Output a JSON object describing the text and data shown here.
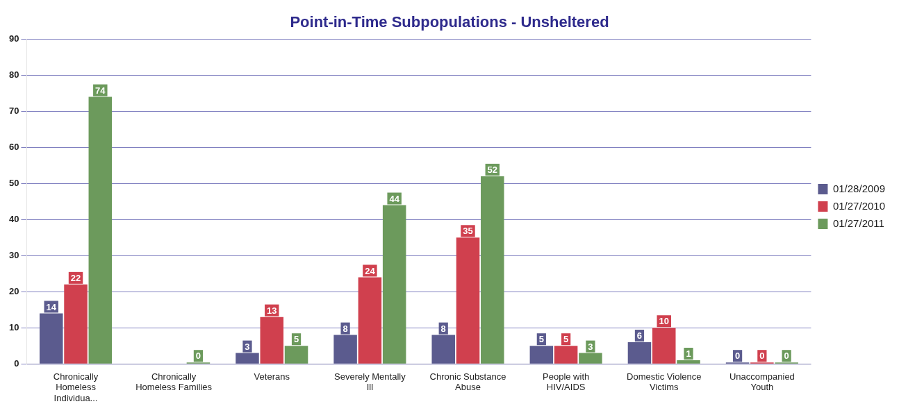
{
  "chart_data": {
    "type": "bar",
    "title": "Point-in-Time Subpopulations - Unsheltered",
    "categories": [
      "Chronically Homeless Individua...",
      "Chronically Homeless Families",
      "Veterans",
      "Severely Mentally Ill",
      "Chronic Substance Abuse",
      "People with HIV/AIDS",
      "Domestic Violence Victims",
      "Unaccompanied Youth"
    ],
    "series": [
      {
        "name": "01/28/2009",
        "color": "#5b5b8e",
        "values": [
          14,
          null,
          3,
          8,
          8,
          5,
          6,
          0
        ]
      },
      {
        "name": "01/27/2010",
        "color": "#d0404e",
        "values": [
          22,
          null,
          13,
          24,
          35,
          5,
          10,
          0
        ]
      },
      {
        "name": "01/27/2011",
        "color": "#6c9a5c",
        "values": [
          74,
          0,
          5,
          44,
          52,
          3,
          1,
          0
        ]
      }
    ],
    "ylim": [
      0,
      90
    ],
    "yticks": [
      0,
      10,
      20,
      30,
      40,
      50,
      60,
      70,
      80,
      90
    ],
    "grid": "y",
    "legend": "right",
    "data_labels": true
  }
}
